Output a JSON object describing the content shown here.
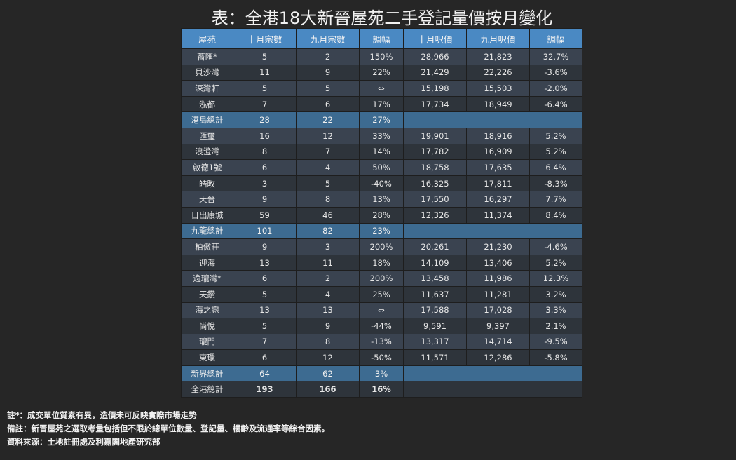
{
  "title": "表：全港18大新晉屋苑二手登記量價按月變化",
  "table": {
    "header": [
      "屋苑",
      "十月宗數",
      "九月宗數",
      "調幅",
      "十月呎價",
      "九月呎價",
      "調幅"
    ],
    "rows": [
      [
        "薔匯*",
        "5",
        "2",
        "150%",
        "28,966",
        "21,823",
        "32.7%"
      ],
      [
        "貝沙灣",
        "11",
        "9",
        "22%",
        "21,429",
        "22,226",
        "-3.6%"
      ],
      [
        "深灣軒",
        "5",
        "5",
        "⇔",
        "15,198",
        "15,503",
        "-2.0%"
      ],
      [
        "泓都",
        "7",
        "6",
        "17%",
        "17,734",
        "18,949",
        "-6.4%"
      ],
      [
        "港島總計",
        "28",
        "22",
        "27%"
      ],
      [
        "匯璽",
        "16",
        "12",
        "33%",
        "19,901",
        "18,916",
        "5.2%"
      ],
      [
        "浪澄灣",
        "8",
        "7",
        "14%",
        "17,782",
        "16,909",
        "5.2%"
      ],
      [
        "啟德1號",
        "6",
        "4",
        "50%",
        "18,758",
        "17,635",
        "6.4%"
      ],
      [
        "皓畋",
        "3",
        "5",
        "-40%",
        "16,325",
        "17,811",
        "-8.3%"
      ],
      [
        "天晉",
        "9",
        "8",
        "13%",
        "17,550",
        "16,297",
        "7.7%"
      ],
      [
        "日出康城",
        "59",
        "46",
        "28%",
        "12,326",
        "11,374",
        "8.4%"
      ],
      [
        "九龍總計",
        "101",
        "82",
        "23%"
      ],
      [
        "柏傲莊",
        "9",
        "3",
        "200%",
        "20,261",
        "21,230",
        "-4.6%"
      ],
      [
        "迎海",
        "13",
        "11",
        "18%",
        "14,109",
        "13,406",
        "5.2%"
      ],
      [
        "逸瓏灣*",
        "6",
        "2",
        "200%",
        "13,458",
        "11,986",
        "12.3%"
      ],
      [
        "天鑽",
        "5",
        "4",
        "25%",
        "11,637",
        "11,281",
        "3.2%"
      ],
      [
        "海之戀",
        "13",
        "13",
        "⇔",
        "17,588",
        "17,028",
        "3.3%"
      ],
      [
        "尚悅",
        "5",
        "9",
        "-44%",
        "9,591",
        "9,397",
        "2.1%"
      ],
      [
        "瓏門",
        "7",
        "8",
        "-13%",
        "13,317",
        "14,714",
        "-9.5%"
      ],
      [
        "東環",
        "6",
        "12",
        "-50%",
        "11,571",
        "12,286",
        "-5.8%"
      ],
      [
        "新界總計",
        "64",
        "62",
        "3%"
      ],
      [
        "全港總計",
        "193",
        "166",
        "16%"
      ]
    ]
  },
  "notes": [
    "註*：成交單位質素有異，造價未可反映實際市場走勢",
    "備註：新晉屋苑之選取考量包括但不限於總單位數量、登記量、樓齡及流通率等綜合因素。",
    "資料來源：土地註冊處及利嘉閣地產研究部"
  ]
}
